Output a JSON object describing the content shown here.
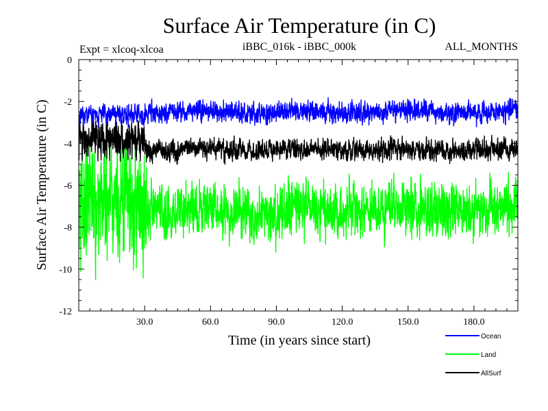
{
  "chart_data": {
    "type": "line",
    "title": "Surface Air Temperature (in C)",
    "subtitle_left": "Expt = xlcoq-xlcoa",
    "subtitle_center": "iBBC_016k - iBBC_000k",
    "subtitle_right": "ALL_MONTHS",
    "xlabel": "Time (in years since start)",
    "ylabel": "Surface Air Temperature (in C)",
    "xlim": [
      0,
      200
    ],
    "ylim": [
      -12,
      0
    ],
    "x_ticks": [
      30,
      60,
      90,
      120,
      150,
      180
    ],
    "x_tick_labels": [
      "30.0",
      "60.0",
      "90.0",
      "120.0",
      "150.0",
      "180.0"
    ],
    "y_ticks": [
      0,
      -2,
      -4,
      -6,
      -8,
      -10,
      -12
    ],
    "y_tick_labels": [
      "0",
      "-2",
      "-4",
      "-6",
      "-8",
      "-10",
      "-12"
    ],
    "grid": false,
    "legend_position": "bottom-right, below plot",
    "sampling": "monthly (12 points per year)",
    "series": [
      {
        "name": "Ocean",
        "color": "#0000ff",
        "mean_early": -2.6,
        "amplitude_early": 0.35,
        "mean": -2.5,
        "amplitude": 0.35,
        "transition_year": 30,
        "range": [
          -3.3,
          -1.4
        ]
      },
      {
        "name": "Land",
        "color": "#00ff00",
        "mean_early": -6.8,
        "amplitude_early": 2.2,
        "mean": -7.2,
        "amplitude": 0.9,
        "transition_year": 31,
        "range": [
          -10.5,
          -3.8
        ]
      },
      {
        "name": "AllSurf",
        "color": "#000000",
        "mean_early": -3.9,
        "amplitude_early": 0.7,
        "mean": -4.3,
        "amplitude": 0.35,
        "transition_year": 31,
        "range": [
          -5.2,
          -2.9
        ]
      }
    ]
  }
}
